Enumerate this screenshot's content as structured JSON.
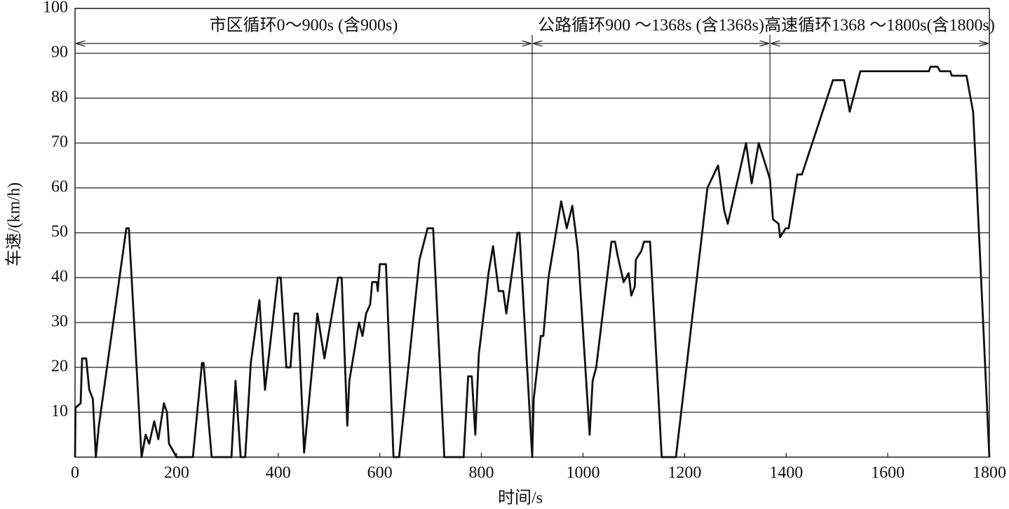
{
  "chart_data": {
    "type": "line",
    "x_label": "时间/s",
    "y_label": "车速/(km/h)",
    "xlim": [
      0,
      1800
    ],
    "xticks": [
      0,
      200,
      400,
      600,
      800,
      1000,
      1200,
      1400,
      1600,
      1800
    ],
    "ylim": [
      0,
      100
    ],
    "yticks": [
      10,
      20,
      30,
      40,
      50,
      60,
      70,
      80,
      90,
      100
    ],
    "grid": true,
    "segments": [
      {
        "label": "市区循环0～900s (含900s)",
        "start": 0,
        "end": 900
      },
      {
        "label": "公路循环900 ～1368s (含1368s)",
        "start": 900,
        "end": 1368
      },
      {
        "label": "高速循环1368 ～1800s(含1800s)",
        "start": 1368,
        "end": 1800
      }
    ],
    "series": [
      {
        "color": "#111111",
        "x": [
          0,
          1,
          11,
          14,
          22,
          28,
          35,
          41,
          47,
          101,
          106,
          131,
          139,
          146,
          156,
          164,
          175,
          181,
          185,
          200,
          232,
          250,
          253,
          269,
          308,
          316,
          326,
          335,
          346,
          363,
          374,
          399,
          405,
          416,
          424,
          432,
          439,
          451,
          477,
          491,
          518,
          525,
          536,
          540,
          559,
          566,
          573,
          581,
          585,
          594,
          596,
          600,
          612,
          627,
          638,
          678,
          694,
          705,
          727,
          765,
          774,
          781,
          788,
          795,
          809,
          814,
          823,
          834,
          843,
          849,
          871,
          875,
          900,
          903,
          917,
          922,
          932,
          957,
          968,
          979,
          990,
          1013,
          1019,
          1026,
          1056,
          1063,
          1068,
          1080,
          1090,
          1095,
          1102,
          1104,
          1115,
          1120,
          1132,
          1155,
          1183,
          1245,
          1266,
          1278,
          1285,
          1321,
          1332,
          1346,
          1368,
          1374,
          1385,
          1388,
          1399,
          1405,
          1422,
          1431,
          1492,
          1514,
          1525,
          1546,
          1681,
          1684,
          1698,
          1703,
          1723,
          1726,
          1755,
          1763,
          1768,
          1775,
          1800
        ],
        "values": [
          0,
          11,
          12,
          22,
          22,
          15,
          13,
          0,
          7,
          51,
          51,
          0,
          5,
          3,
          8,
          4,
          12,
          10,
          3,
          0,
          0,
          21,
          21,
          0,
          0,
          17,
          0,
          0,
          21,
          35,
          15,
          40,
          40,
          20,
          20,
          32,
          32,
          1,
          32,
          22,
          40,
          40,
          7,
          17,
          30,
          27,
          32,
          34,
          39,
          39,
          37,
          43,
          43,
          0,
          0,
          44,
          51,
          51,
          0,
          0,
          18,
          18,
          5,
          23,
          36,
          41,
          47,
          37,
          37,
          32,
          50,
          50,
          0,
          13,
          27,
          27,
          40,
          57,
          51,
          56,
          46,
          5,
          17,
          20,
          48,
          48,
          45,
          39,
          41,
          36,
          38,
          44,
          46,
          48,
          48,
          0,
          0,
          60,
          65,
          55,
          52,
          70,
          61,
          70,
          62,
          53,
          52,
          49,
          51,
          51,
          63,
          63,
          84,
          84,
          77,
          86,
          86,
          87,
          87,
          86,
          86,
          85,
          85,
          80,
          77,
          61,
          0
        ]
      }
    ]
  }
}
